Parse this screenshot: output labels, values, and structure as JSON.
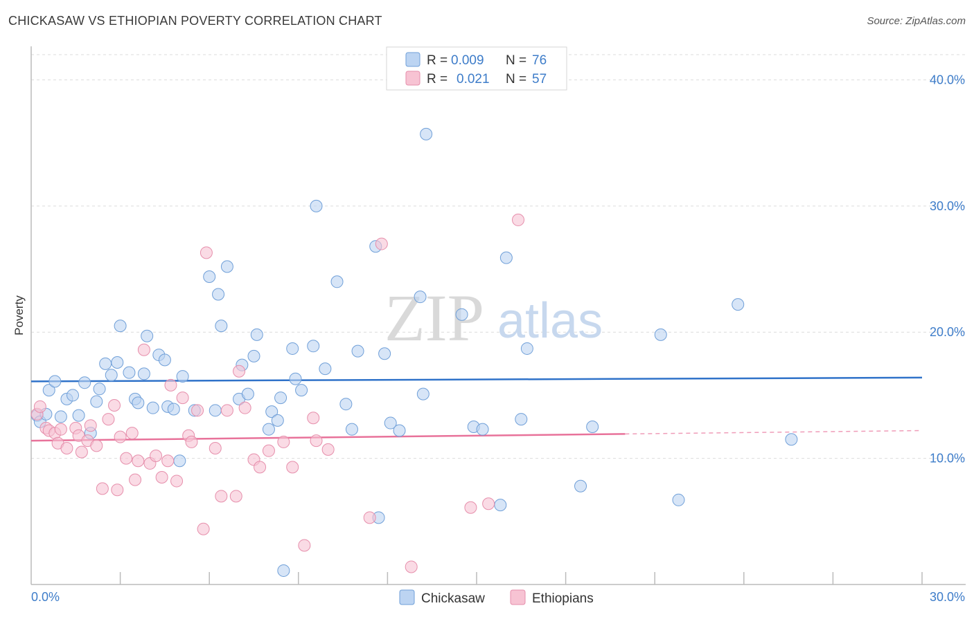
{
  "header": {
    "title": "CHICKASAW VS ETHIOPIAN POVERTY CORRELATION CHART",
    "source": "Source: ZipAtlas.com"
  },
  "watermark": {
    "zip": "ZIP",
    "atlas": "atlas"
  },
  "colors": {
    "blue_fill": "#bcd4f2",
    "blue_stroke": "#6f9fd8",
    "blue_line": "#2f72c9",
    "pink_fill": "#f7c3d3",
    "pink_stroke": "#e68eab",
    "pink_line": "#e8729a",
    "grid": "#dcdcdc",
    "axis": "#bbbbbb",
    "tick_text": "#3d7cc9"
  },
  "legend": {
    "rows": [
      {
        "r_label": "R =",
        "r_value": "0.009",
        "n_label": "N =",
        "n_value": "76"
      },
      {
        "r_label": "R =",
        "r_value": "0.021",
        "n_label": "N =",
        "n_value": "57"
      }
    ]
  },
  "chart_data": {
    "type": "scatter",
    "title": "CHICKASAW VS ETHIOPIAN POVERTY CORRELATION CHART",
    "xlabel": "",
    "ylabel": "Poverty",
    "xlim": [
      0,
      30
    ],
    "ylim": [
      0,
      42
    ],
    "x_tick_labels": [
      {
        "value": 0,
        "label": "0.0%"
      },
      {
        "value": 30,
        "label": "30.0%"
      }
    ],
    "y_tick_labels": [
      {
        "value": 10,
        "label": "10.0%"
      },
      {
        "value": 20,
        "label": "20.0%"
      },
      {
        "value": 30,
        "label": "30.0%"
      },
      {
        "value": 40,
        "label": "40.0%"
      }
    ],
    "grid": true,
    "legend_position": "top-center",
    "series": [
      {
        "name": "Chickasaw",
        "r": 0.009,
        "n": 76,
        "trend": {
          "x0": 0,
          "y0": 16.1,
          "x1": 30,
          "y1": 16.4,
          "dashed_from": null
        },
        "points": [
          [
            0.2,
            13.4
          ],
          [
            0.3,
            12.9
          ],
          [
            0.5,
            13.5
          ],
          [
            0.6,
            15.4
          ],
          [
            0.8,
            16.1
          ],
          [
            1.0,
            13.3
          ],
          [
            1.2,
            14.7
          ],
          [
            1.4,
            15.0
          ],
          [
            1.6,
            13.4
          ],
          [
            1.8,
            16.0
          ],
          [
            2.0,
            12.0
          ],
          [
            2.2,
            14.5
          ],
          [
            2.3,
            15.5
          ],
          [
            2.5,
            17.5
          ],
          [
            2.7,
            16.6
          ],
          [
            2.9,
            17.6
          ],
          [
            3.0,
            20.5
          ],
          [
            3.3,
            16.8
          ],
          [
            3.5,
            14.7
          ],
          [
            3.6,
            14.4
          ],
          [
            3.8,
            16.7
          ],
          [
            3.9,
            19.7
          ],
          [
            4.1,
            14.0
          ],
          [
            4.3,
            18.2
          ],
          [
            4.5,
            17.8
          ],
          [
            4.6,
            14.1
          ],
          [
            4.8,
            13.9
          ],
          [
            5.0,
            9.8
          ],
          [
            5.1,
            16.5
          ],
          [
            5.5,
            13.8
          ],
          [
            6.0,
            24.4
          ],
          [
            6.2,
            13.8
          ],
          [
            6.3,
            23.0
          ],
          [
            6.4,
            20.5
          ],
          [
            6.6,
            25.2
          ],
          [
            7.0,
            14.7
          ],
          [
            7.1,
            17.4
          ],
          [
            7.3,
            15.1
          ],
          [
            7.5,
            18.1
          ],
          [
            7.6,
            19.8
          ],
          [
            8.0,
            12.3
          ],
          [
            8.1,
            13.7
          ],
          [
            8.3,
            13.0
          ],
          [
            8.4,
            14.8
          ],
          [
            8.5,
            1.1
          ],
          [
            8.8,
            18.7
          ],
          [
            8.9,
            16.3
          ],
          [
            9.1,
            15.4
          ],
          [
            9.5,
            18.9
          ],
          [
            9.6,
            30.0
          ],
          [
            9.9,
            17.1
          ],
          [
            10.3,
            24.0
          ],
          [
            10.6,
            14.3
          ],
          [
            10.8,
            12.3
          ],
          [
            11.0,
            18.5
          ],
          [
            11.6,
            26.8
          ],
          [
            11.7,
            5.3
          ],
          [
            11.9,
            18.3
          ],
          [
            12.1,
            12.8
          ],
          [
            12.4,
            12.2
          ],
          [
            13.1,
            22.8
          ],
          [
            13.2,
            15.1
          ],
          [
            13.3,
            35.7
          ],
          [
            14.5,
            21.4
          ],
          [
            14.9,
            12.5
          ],
          [
            15.2,
            12.3
          ],
          [
            15.8,
            6.3
          ],
          [
            16.0,
            25.9
          ],
          [
            16.5,
            13.1
          ],
          [
            16.7,
            18.7
          ],
          [
            18.5,
            7.8
          ],
          [
            18.9,
            12.5
          ],
          [
            21.2,
            19.8
          ],
          [
            21.8,
            6.7
          ],
          [
            23.8,
            22.2
          ],
          [
            25.6,
            11.5
          ]
        ]
      },
      {
        "name": "Ethiopians",
        "r": 0.021,
        "n": 57,
        "trend": {
          "x0": 0,
          "y0": 11.4,
          "x1": 30,
          "y1": 12.2,
          "dashed_from": 20
        },
        "points": [
          [
            0.2,
            13.5
          ],
          [
            0.3,
            14.1
          ],
          [
            0.5,
            12.4
          ],
          [
            0.6,
            12.2
          ],
          [
            0.8,
            12.0
          ],
          [
            0.9,
            11.2
          ],
          [
            1.0,
            12.3
          ],
          [
            1.2,
            10.8
          ],
          [
            1.5,
            12.4
          ],
          [
            1.6,
            11.8
          ],
          [
            1.7,
            10.5
          ],
          [
            1.9,
            11.4
          ],
          [
            2.0,
            12.6
          ],
          [
            2.2,
            11.0
          ],
          [
            2.4,
            7.6
          ],
          [
            2.6,
            13.1
          ],
          [
            2.8,
            14.2
          ],
          [
            2.9,
            7.5
          ],
          [
            3.0,
            11.7
          ],
          [
            3.2,
            10.0
          ],
          [
            3.4,
            12.0
          ],
          [
            3.5,
            8.3
          ],
          [
            3.6,
            9.8
          ],
          [
            3.8,
            18.6
          ],
          [
            4.0,
            9.6
          ],
          [
            4.2,
            10.2
          ],
          [
            4.4,
            8.5
          ],
          [
            4.6,
            9.8
          ],
          [
            4.7,
            15.8
          ],
          [
            4.9,
            8.2
          ],
          [
            5.1,
            14.8
          ],
          [
            5.3,
            11.8
          ],
          [
            5.4,
            11.3
          ],
          [
            5.6,
            13.8
          ],
          [
            5.8,
            4.4
          ],
          [
            5.9,
            26.3
          ],
          [
            6.2,
            10.8
          ],
          [
            6.4,
            7.0
          ],
          [
            6.6,
            13.8
          ],
          [
            6.9,
            7.0
          ],
          [
            7.0,
            16.9
          ],
          [
            7.2,
            14.0
          ],
          [
            7.5,
            9.9
          ],
          [
            7.7,
            9.3
          ],
          [
            8.0,
            10.6
          ],
          [
            8.5,
            11.3
          ],
          [
            8.8,
            9.3
          ],
          [
            9.2,
            3.1
          ],
          [
            9.5,
            13.2
          ],
          [
            9.6,
            11.4
          ],
          [
            10.0,
            10.7
          ],
          [
            11.4,
            5.3
          ],
          [
            11.8,
            27.0
          ],
          [
            12.8,
            1.4
          ],
          [
            14.8,
            6.1
          ],
          [
            15.4,
            6.4
          ],
          [
            16.4,
            28.9
          ]
        ]
      }
    ]
  },
  "bottom_legend": [
    {
      "label": "Chickasaw"
    },
    {
      "label": "Ethiopians"
    }
  ]
}
